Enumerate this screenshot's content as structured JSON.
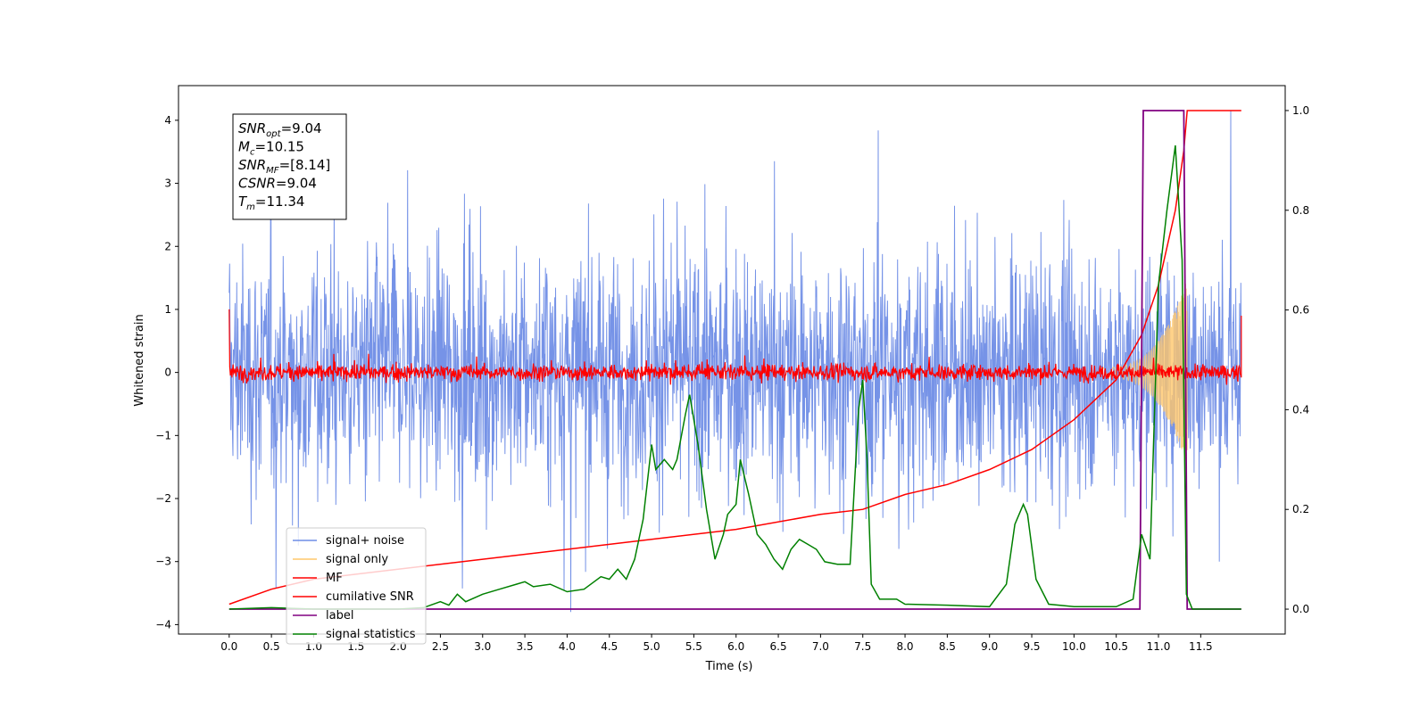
{
  "chart_data": {
    "type": "line",
    "xlabel": "Time (s)",
    "ylabel": "Whitened strain",
    "xlim": [
      -0.6,
      12.5
    ],
    "ylim": [
      -4.15,
      4.55
    ],
    "ylim_right": [
      -0.05,
      1.05
    ],
    "x_ticks": [
      "0.0",
      "0.5",
      "1.0",
      "1.5",
      "2.0",
      "2.5",
      "3.0",
      "3.5",
      "4.0",
      "4.5",
      "5.0",
      "5.5",
      "6.0",
      "6.5",
      "7.0",
      "7.5",
      "8.0",
      "8.5",
      "9.0",
      "9.5",
      "10.0",
      "10.5",
      "11.0",
      "11.5"
    ],
    "y_ticks_left": [
      "4",
      "3",
      "2",
      "1",
      "0",
      "−1",
      "−2",
      "−3",
      "−4"
    ],
    "y_ticks_right": [
      "1.0",
      "0.8",
      "0.6",
      "0.4",
      "0.2",
      "0.0"
    ],
    "grid": false,
    "legend_position": "lower-left",
    "annotation_lines": [
      "SNR_opt=9.04",
      "M_c=10.15",
      "SNR_MF=[8.14]",
      "CSNR=9.04",
      "T_m=11.34"
    ],
    "annotations": [
      {
        "sym": "SNR",
        "sub": "opt",
        "val": "=9.04"
      },
      {
        "sym": "M",
        "sub": "c",
        "val": "=10.15"
      },
      {
        "sym": "SNR",
        "sub": "MF",
        "val": "=[8.14]"
      },
      {
        "sym": "CSNR",
        "sub": "",
        "val": "=9.04"
      },
      {
        "sym": "T",
        "sub": "m",
        "val": "=11.34"
      }
    ],
    "series": [
      {
        "name": "signal+ noise",
        "color": "#6f8de6",
        "axis": "left",
        "description_range": [
          -3.8,
          4.2
        ]
      },
      {
        "name": "signal only",
        "color": "#ffc76b",
        "axis": "left"
      },
      {
        "name": "MF",
        "color": "#ff0000",
        "axis": "left",
        "description_range": [
          -0.2,
          0.45
        ],
        "start_value": 1.0,
        "end_value": 0.9
      },
      {
        "name": "cumilative SNR",
        "color": "#ff0000",
        "axis": "right",
        "points": [
          [
            0.0,
            0.01
          ],
          [
            0.5,
            0.04
          ],
          [
            1.0,
            0.06
          ],
          [
            2.0,
            0.08
          ],
          [
            3.0,
            0.1
          ],
          [
            4.0,
            0.12
          ],
          [
            5.0,
            0.14
          ],
          [
            6.0,
            0.16
          ],
          [
            7.0,
            0.19
          ],
          [
            7.5,
            0.2
          ],
          [
            8.0,
            0.23
          ],
          [
            8.5,
            0.25
          ],
          [
            9.0,
            0.28
          ],
          [
            9.5,
            0.32
          ],
          [
            10.0,
            0.38
          ],
          [
            10.5,
            0.46
          ],
          [
            10.8,
            0.55
          ],
          [
            11.0,
            0.65
          ],
          [
            11.2,
            0.8
          ],
          [
            11.3,
            0.92
          ],
          [
            11.34,
            1.0
          ],
          [
            11.98,
            1.0
          ]
        ]
      },
      {
        "name": "label",
        "color": "#800080",
        "axis": "right",
        "points": [
          [
            0.0,
            0.0
          ],
          [
            10.78,
            0.0
          ],
          [
            10.82,
            1.0
          ],
          [
            11.3,
            1.0
          ],
          [
            11.34,
            0.0
          ],
          [
            11.98,
            0.0
          ]
        ]
      },
      {
        "name": "signal statistics",
        "color": "#008000",
        "axis": "right",
        "points": [
          [
            0.0,
            0.0
          ],
          [
            0.5,
            0.003
          ],
          [
            1.0,
            0.0
          ],
          [
            1.5,
            0.0
          ],
          [
            2.0,
            0.0
          ],
          [
            2.3,
            0.003
          ],
          [
            2.5,
            0.015
          ],
          [
            2.6,
            0.008
          ],
          [
            2.7,
            0.03
          ],
          [
            2.8,
            0.015
          ],
          [
            3.0,
            0.03
          ],
          [
            3.2,
            0.04
          ],
          [
            3.4,
            0.05
          ],
          [
            3.5,
            0.055
          ],
          [
            3.6,
            0.045
          ],
          [
            3.8,
            0.05
          ],
          [
            4.0,
            0.035
          ],
          [
            4.2,
            0.04
          ],
          [
            4.4,
            0.065
          ],
          [
            4.5,
            0.06
          ],
          [
            4.6,
            0.08
          ],
          [
            4.7,
            0.06
          ],
          [
            4.8,
            0.1
          ],
          [
            4.9,
            0.18
          ],
          [
            5.0,
            0.33
          ],
          [
            5.05,
            0.28
          ],
          [
            5.15,
            0.3
          ],
          [
            5.25,
            0.28
          ],
          [
            5.3,
            0.3
          ],
          [
            5.4,
            0.39
          ],
          [
            5.45,
            0.43
          ],
          [
            5.55,
            0.33
          ],
          [
            5.65,
            0.2
          ],
          [
            5.75,
            0.1
          ],
          [
            5.85,
            0.15
          ],
          [
            5.9,
            0.19
          ],
          [
            6.0,
            0.21
          ],
          [
            6.05,
            0.3
          ],
          [
            6.15,
            0.23
          ],
          [
            6.25,
            0.15
          ],
          [
            6.35,
            0.13
          ],
          [
            6.45,
            0.1
          ],
          [
            6.55,
            0.08
          ],
          [
            6.65,
            0.12
          ],
          [
            6.75,
            0.14
          ],
          [
            6.85,
            0.13
          ],
          [
            6.95,
            0.12
          ],
          [
            7.05,
            0.095
          ],
          [
            7.2,
            0.09
          ],
          [
            7.35,
            0.09
          ],
          [
            7.45,
            0.4
          ],
          [
            7.5,
            0.46
          ],
          [
            7.55,
            0.3
          ],
          [
            7.6,
            0.05
          ],
          [
            7.7,
            0.02
          ],
          [
            7.9,
            0.02
          ],
          [
            8.0,
            0.01
          ],
          [
            8.5,
            0.008
          ],
          [
            9.0,
            0.005
          ],
          [
            9.2,
            0.05
          ],
          [
            9.3,
            0.17
          ],
          [
            9.4,
            0.21
          ],
          [
            9.45,
            0.19
          ],
          [
            9.55,
            0.06
          ],
          [
            9.7,
            0.01
          ],
          [
            10.0,
            0.005
          ],
          [
            10.5,
            0.005
          ],
          [
            10.7,
            0.02
          ],
          [
            10.8,
            0.15
          ],
          [
            10.9,
            0.1
          ],
          [
            11.0,
            0.65
          ],
          [
            11.1,
            0.8
          ],
          [
            11.2,
            0.93
          ],
          [
            11.28,
            0.7
          ],
          [
            11.33,
            0.03
          ],
          [
            11.4,
            0.0
          ],
          [
            11.98,
            0.0
          ]
        ]
      }
    ]
  }
}
